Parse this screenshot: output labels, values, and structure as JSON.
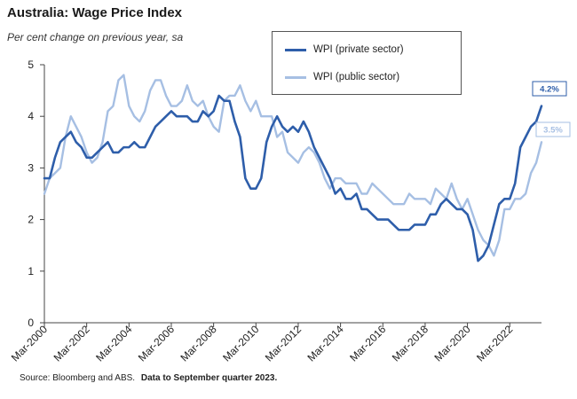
{
  "chart_data": {
    "type": "line",
    "title": "Australia: Wage Price Index",
    "subtitle": "Per cent change on previous year, sa",
    "xlabel": "",
    "ylabel": "",
    "ylim": [
      0,
      5
    ],
    "yticks": [
      "0",
      "1",
      "2",
      "3",
      "4",
      "5"
    ],
    "x_start": "Mar-2000",
    "x_end": "Sep-2023",
    "x_tick_labels": [
      "Mar-2000",
      "Mar-2002",
      "Mar-2004",
      "Mar-2006",
      "Mar-2008",
      "Mar-2010",
      "Mar-2012",
      "Mar-2014",
      "Mar-2016",
      "Mar-2018",
      "Mar-2020",
      "Mar-2022"
    ],
    "legend_position": "top-center",
    "series": [
      {
        "name": "WPI (private sector)",
        "color": "#2e5eaa",
        "end_label": "4.2%",
        "values": [
          2.8,
          2.8,
          3.2,
          3.5,
          3.6,
          3.7,
          3.5,
          3.4,
          3.2,
          3.2,
          3.3,
          3.4,
          3.5,
          3.3,
          3.3,
          3.4,
          3.4,
          3.5,
          3.4,
          3.4,
          3.6,
          3.8,
          3.9,
          4.0,
          4.1,
          4.0,
          4.0,
          4.0,
          3.9,
          3.9,
          4.1,
          4.0,
          4.1,
          4.4,
          4.3,
          4.3,
          3.9,
          3.6,
          2.8,
          2.6,
          2.6,
          2.8,
          3.5,
          3.8,
          4.0,
          3.8,
          3.7,
          3.8,
          3.7,
          3.9,
          3.7,
          3.4,
          3.2,
          3.0,
          2.8,
          2.5,
          2.6,
          2.4,
          2.4,
          2.5,
          2.2,
          2.2,
          2.1,
          2.0,
          2.0,
          2.0,
          1.9,
          1.8,
          1.8,
          1.8,
          1.9,
          1.9,
          1.9,
          2.1,
          2.1,
          2.3,
          2.4,
          2.3,
          2.2,
          2.2,
          2.1,
          1.8,
          1.2,
          1.3,
          1.5,
          1.9,
          2.3,
          2.4,
          2.4,
          2.7,
          3.4,
          3.6,
          3.8,
          3.9,
          4.2
        ]
      },
      {
        "name": "WPI (public sector)",
        "color": "#a6bfe3",
        "end_label": "3.5%",
        "values": [
          2.5,
          2.8,
          2.9,
          3.0,
          3.6,
          4.0,
          3.8,
          3.6,
          3.3,
          3.1,
          3.2,
          3.5,
          4.1,
          4.2,
          4.7,
          4.8,
          4.2,
          4.0,
          3.9,
          4.1,
          4.5,
          4.7,
          4.7,
          4.4,
          4.2,
          4.2,
          4.3,
          4.6,
          4.3,
          4.2,
          4.3,
          4.0,
          3.8,
          3.7,
          4.3,
          4.4,
          4.4,
          4.6,
          4.3,
          4.1,
          4.3,
          4.0,
          4.0,
          4.0,
          3.6,
          3.7,
          3.3,
          3.2,
          3.1,
          3.3,
          3.4,
          3.3,
          3.1,
          2.8,
          2.6,
          2.8,
          2.8,
          2.7,
          2.7,
          2.7,
          2.5,
          2.5,
          2.7,
          2.6,
          2.5,
          2.4,
          2.3,
          2.3,
          2.3,
          2.5,
          2.4,
          2.4,
          2.4,
          2.3,
          2.6,
          2.5,
          2.4,
          2.7,
          2.4,
          2.2,
          2.4,
          2.1,
          1.8,
          1.6,
          1.5,
          1.3,
          1.6,
          2.2,
          2.2,
          2.4,
          2.4,
          2.5,
          2.9,
          3.1,
          3.5
        ]
      }
    ]
  },
  "footer": {
    "source": "Source: Bloomberg and ABS.",
    "note": "Data to September quarter 2023."
  }
}
